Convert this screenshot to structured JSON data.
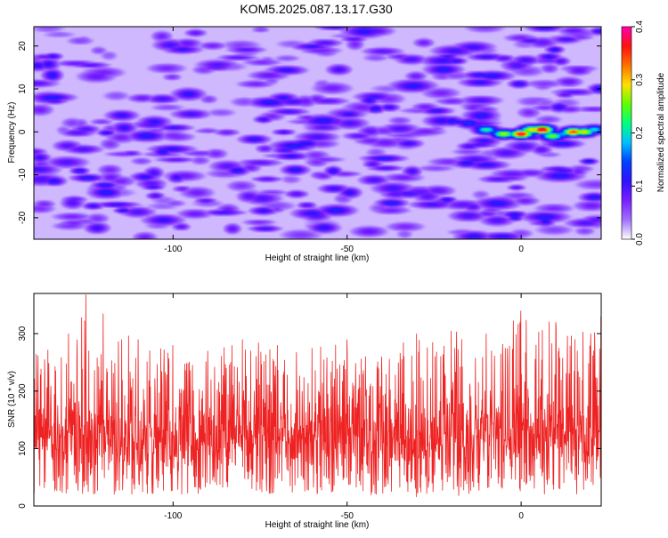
{
  "title": "KOM5.2025.087.13.17.G30",
  "chart_data": [
    {
      "type": "heatmap",
      "xlabel": "Height of straight line (km)",
      "ylabel": "Frequency (Hz)",
      "xlim": [
        -140,
        23
      ],
      "ylim": [
        -25,
        24.5
      ],
      "xticks": [
        -100,
        -50,
        0
      ],
      "yticks": [
        -20,
        -10,
        0,
        10,
        20
      ],
      "colorbar": {
        "label": "Normalized spectral amplitude",
        "range": [
          0.0,
          0.4
        ],
        "ticks": [
          "0.0",
          "0.1",
          "0.2",
          "0.3",
          "0.4"
        ],
        "colors": [
          "#ffffff",
          "#a070ff",
          "#7a1fff",
          "#3010ff",
          "#0040ff",
          "#00c0ff",
          "#00ff80",
          "#60ff00",
          "#ffe000",
          "#ff7000",
          "#ff1010",
          "#ff00b0"
        ]
      },
      "ridge": {
        "x": [
          -20,
          -15,
          -10,
          -5,
          0,
          3,
          6,
          9,
          12,
          15,
          18,
          21
        ],
        "y": [
          2.5,
          2.0,
          0.5,
          -0.5,
          -0.5,
          0.5,
          0.5,
          -1.0,
          -0.5,
          0.0,
          0.0,
          0.5
        ],
        "peak_amplitude": [
          0.12,
          0.14,
          0.22,
          0.28,
          0.38,
          0.3,
          0.39,
          0.26,
          0.18,
          0.35,
          0.3,
          0.2
        ]
      },
      "background_amplitude_range": [
        0.0,
        0.1
      ]
    },
    {
      "type": "line",
      "xlabel": "Height of straight line (km)",
      "ylabel": "SNR (10 * v/v)",
      "xlim": [
        -140,
        23
      ],
      "ylim": [
        0,
        370
      ],
      "xticks": [
        -100,
        -50,
        0
      ],
      "yticks": [
        0,
        100,
        200,
        300
      ],
      "series": [
        {
          "color": "#ee2222",
          "profile_x": [
            -140,
            -130,
            -125,
            -120,
            -110,
            -100,
            -90,
            -80,
            -70,
            -60,
            -50,
            -40,
            -30,
            -20,
            -10,
            0,
            10,
            20,
            23
          ],
          "profile_mean": [
            125,
            125,
            128,
            126,
            124,
            122,
            120,
            122,
            120,
            118,
            118,
            115,
            118,
            120,
            122,
            128,
            125,
            122,
            122
          ],
          "profile_peak": [
            280,
            300,
            368,
            335,
            290,
            280,
            270,
            290,
            280,
            275,
            290,
            260,
            300,
            305,
            300,
            340,
            320,
            300,
            330
          ]
        }
      ]
    }
  ]
}
